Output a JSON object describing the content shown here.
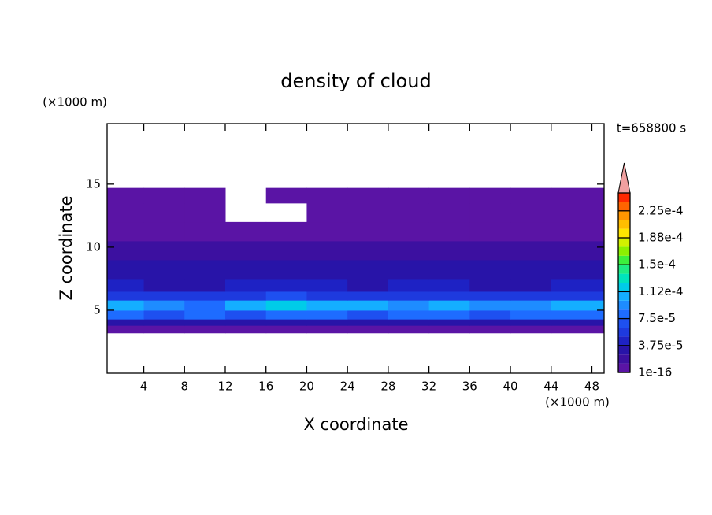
{
  "chart_data": {
    "type": "contour",
    "title": "density of cloud",
    "x_label": "X coordinate",
    "y_label": "Z coordinate",
    "x_unit": "(×1000 m)",
    "y_unit": "(×1000 m)",
    "time_label": "t=658800 s",
    "xlim": [
      0.4,
      49.2
    ],
    "ylim": [
      0,
      19.8
    ],
    "xticks": [
      4,
      8,
      12,
      16,
      20,
      24,
      28,
      32,
      36,
      40,
      44,
      48
    ],
    "yticks": [
      5,
      10,
      15
    ],
    "field": {
      "x_edges": [
        0.4,
        4,
        8,
        12,
        16,
        20,
        24,
        28,
        32,
        36,
        40,
        44,
        49.2
      ],
      "z_edges": [
        3.2,
        3.8,
        4.3,
        5.0,
        5.8,
        6.5,
        7.5,
        9.0,
        10.5,
        12,
        13.5,
        14.7
      ],
      "values": [
        [
          5e-06,
          5e-06,
          5e-06,
          5e-06,
          5e-06,
          5e-06,
          5e-06,
          5e-06,
          5e-06,
          5e-06,
          5e-06,
          5e-06
        ],
        [
          3e-05,
          2.8e-05,
          3e-05,
          2.5e-05,
          3e-05,
          3e-05,
          2.8e-05,
          3e-05,
          3e-05,
          2.8e-05,
          3e-05,
          3e-05
        ],
        [
          8e-05,
          7e-05,
          7.5e-05,
          6.5e-05,
          8e-05,
          7.5e-05,
          7e-05,
          8e-05,
          7.5e-05,
          7e-05,
          7.5e-05,
          8e-05
        ],
        [
          0.00011,
          9e-05,
          8.5e-05,
          0.000105,
          0.000115,
          0.000105,
          0.00011,
          9.5e-05,
          0.000105,
          9e-05,
          9.5e-05,
          0.00011
        ],
        [
          6e-05,
          5.5e-05,
          5e-05,
          5.5e-05,
          6.5e-05,
          6e-05,
          5.5e-05,
          6e-05,
          5.5e-05,
          5e-05,
          5.5e-05,
          6e-05
        ],
        [
          4e-05,
          3.5e-05,
          3.5e-05,
          4e-05,
          4.5e-05,
          4e-05,
          3.5e-05,
          4e-05,
          4e-05,
          3.5e-05,
          3.5e-05,
          4e-05
        ],
        [
          2.8e-05,
          2.5e-05,
          2.6e-05,
          2.8e-05,
          3e-05,
          2.6e-05,
          2.5e-05,
          2.8e-05,
          2.6e-05,
          2.5e-05,
          2.8e-05,
          2.6e-05
        ],
        [
          1.8e-05,
          1.5e-05,
          1.8e-05,
          2e-05,
          1.8e-05,
          1.5e-05,
          1.8e-05,
          1.8e-05,
          2e-05,
          1.8e-05,
          1.5e-05,
          1.8e-05
        ],
        [
          8e-06,
          8e-06,
          8e-06,
          8e-06,
          8e-06,
          8e-06,
          8e-06,
          8e-06,
          8e-06,
          8e-06,
          8e-06,
          8e-06
        ],
        [
          6e-06,
          6e-06,
          6e-06,
          null,
          null,
          4e-06,
          6e-06,
          6e-06,
          6e-06,
          6e-06,
          6e-06,
          6e-06
        ],
        [
          5e-06,
          5e-06,
          5e-06,
          null,
          5e-06,
          5e-06,
          5e-06,
          5e-06,
          5e-06,
          5e-06,
          5e-06,
          5e-06
        ]
      ]
    },
    "levels": [
      1e-16,
      1.25e-05,
      2.5e-05,
      3.75e-05,
      5e-05,
      6.25e-05,
      7.5e-05,
      8.75e-05,
      0.0001,
      0.0001125,
      0.000125,
      0.0001375,
      0.00015,
      0.0001625,
      0.000175,
      0.0001875,
      0.0002,
      0.0002125,
      0.000225,
      0.0002375,
      0.00025
    ],
    "colors": [
      "#5a14a5",
      "#3c10a0",
      "#2814a8",
      "#1e22c4",
      "#1e3ade",
      "#1e50f0",
      "#1e6cff",
      "#1e8cff",
      "#14aeff",
      "#00cce8",
      "#00e4bc",
      "#1eec82",
      "#3cf03c",
      "#8cf000",
      "#d2f000",
      "#ffe600",
      "#ffbe00",
      "#ff9600",
      "#ff6400",
      "#ff2800"
    ],
    "over_color": "#f0a0a0",
    "colorbar_ticks": [
      1e-16,
      {
        "value": 3.75e-05,
        "label": "3.75e-5"
      },
      {
        "value": 7.5e-05,
        "label": "7.5e-5"
      },
      {
        "value": 0.0001125,
        "label": "1.12e-4"
      },
      {
        "value": 0.00015,
        "label": "1.5e-4"
      },
      {
        "value": 0.0001875,
        "label": "1.88e-4"
      },
      {
        "value": 0.000225,
        "label": "2.25e-4"
      }
    ]
  }
}
